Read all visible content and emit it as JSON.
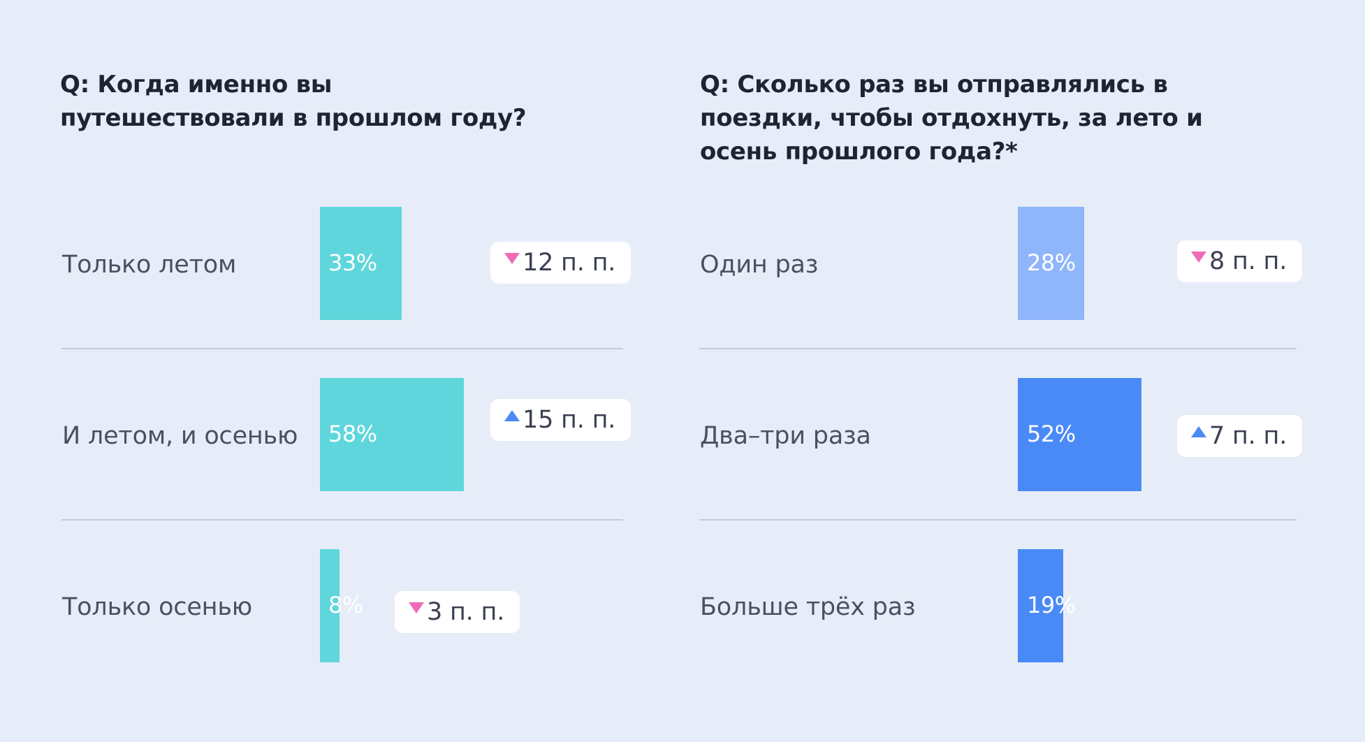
{
  "colors": {
    "background": "#e7edf8",
    "teal": "#5fd6dc",
    "light_blue": "#8fb5fb",
    "blue": "#4a8af7",
    "arrow_down": "#f06bb5",
    "arrow_up": "#4a8af7"
  },
  "chart_data": [
    {
      "type": "bar",
      "orientation": "horizontal",
      "title": "Q: Когда именно вы путешествовали в прошлом году?",
      "categories": [
        "Только летом",
        "И летом, и осенью",
        "Только осенью"
      ],
      "values": [
        33,
        58,
        8
      ],
      "value_labels": [
        "33%",
        "58%",
        "8%"
      ],
      "bar_colors": [
        "#5fd6dc",
        "#5fd6dc",
        "#5fd6dc"
      ],
      "deltas": [
        {
          "direction": "down",
          "text": "12 п. п."
        },
        {
          "direction": "up",
          "text": "15 п. п."
        },
        {
          "direction": "down",
          "text": "3 п. п."
        }
      ],
      "xlim": [
        0,
        100
      ],
      "grid": false,
      "xlabel": "",
      "ylabel": ""
    },
    {
      "type": "bar",
      "orientation": "horizontal",
      "title": "Q: Сколько раз вы отправлялись в поездки, чтобы отдохнуть, за лето и осень прошлого года?*",
      "categories": [
        "Один раз",
        "Два–три раза",
        "Больше трёх раз"
      ],
      "values": [
        28,
        52,
        19
      ],
      "value_labels": [
        "28%",
        "52%",
        "19%"
      ],
      "bar_colors": [
        "#8fb5fb",
        "#4a8af7",
        "#4a8af7"
      ],
      "deltas": [
        {
          "direction": "down",
          "text": "8 п. п."
        },
        {
          "direction": "up",
          "text": "7 п. п."
        },
        null
      ],
      "xlim": [
        0,
        100
      ],
      "grid": false,
      "xlabel": "",
      "ylabel": ""
    }
  ]
}
